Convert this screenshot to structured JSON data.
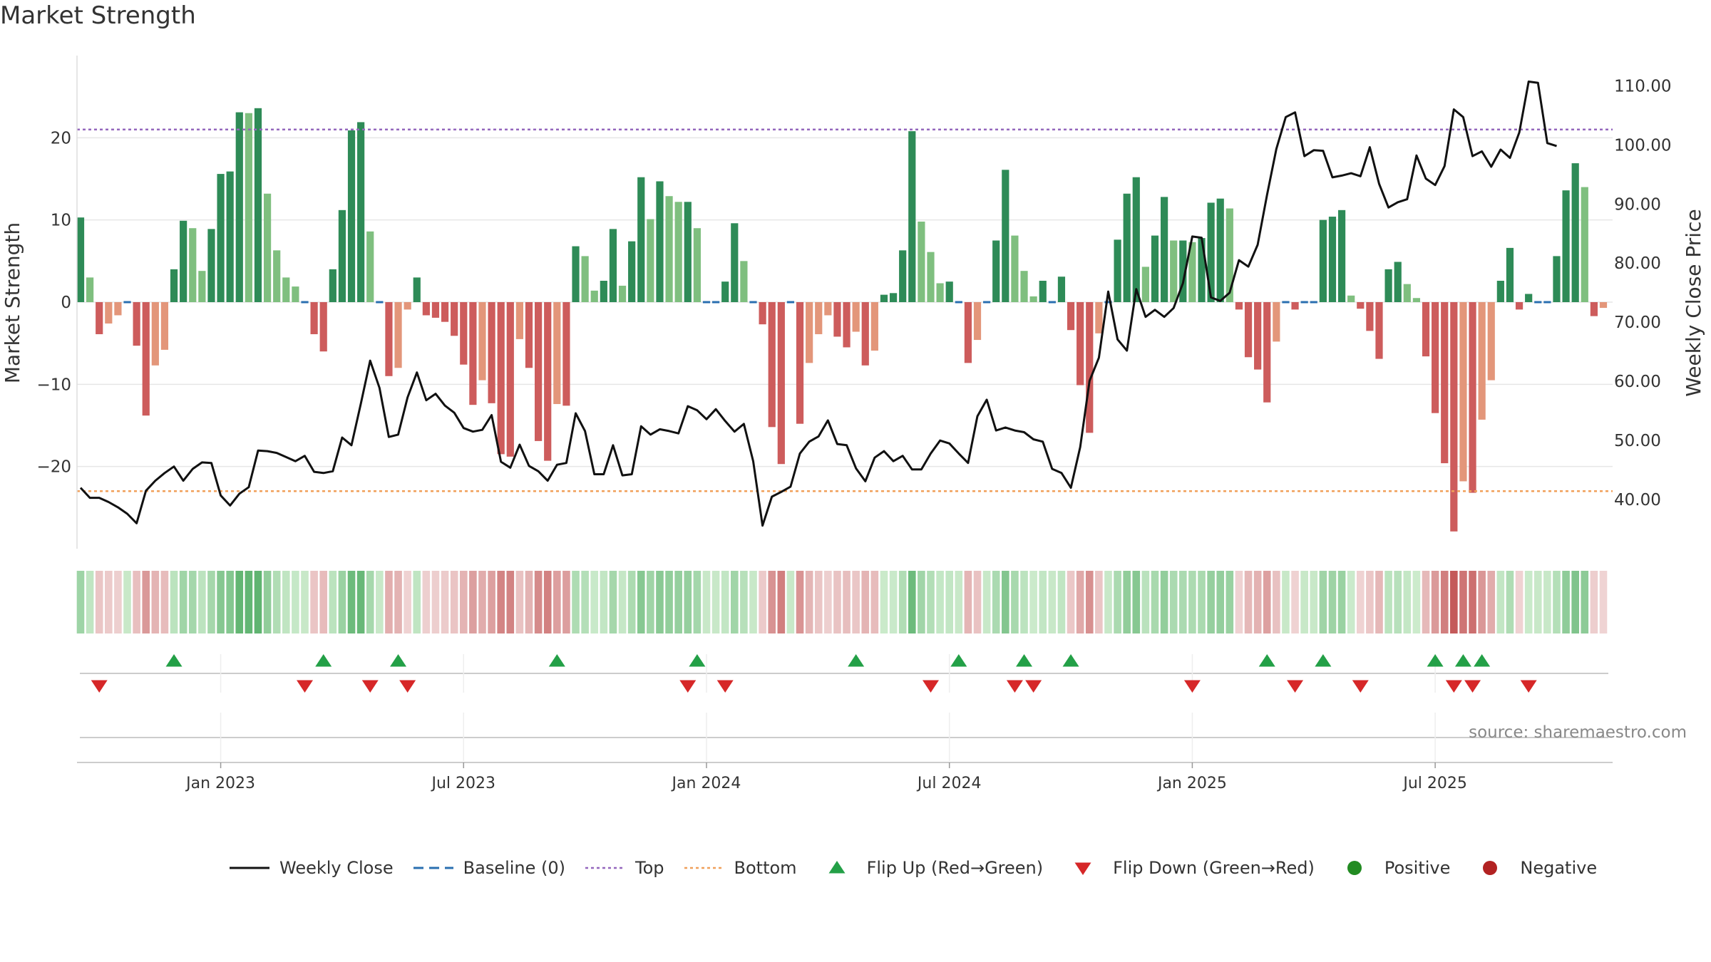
{
  "chart_data": {
    "type": "bar+line",
    "title": "Market Strength",
    "ylabel_left": "Market Strength",
    "ylabel_right": "Weekly Close Price",
    "left_axis": {
      "min": -30,
      "max": 30,
      "ticks": [
        20,
        10,
        0,
        -10,
        -20
      ],
      "tick_labels": [
        "20",
        "10",
        "0",
        "−10",
        "−20"
      ]
    },
    "right_axis": {
      "min": 31.7,
      "max": 115.1,
      "ticks": [
        110,
        100,
        90,
        80,
        70,
        60,
        50,
        40
      ],
      "tick_labels": [
        "110.00",
        "100.00",
        "90.00",
        "80.00",
        "70.00",
        "60.00",
        "50.00",
        "40.00"
      ]
    },
    "x_axis": {
      "tick_labels": [
        "Jan 2023",
        "Jul 2023",
        "Jan 2024",
        "Jul 2024",
        "Jan 2025",
        "Jul 2025"
      ],
      "tick_weeks": [
        15,
        41,
        67,
        93,
        119,
        145
      ]
    },
    "top_level": 21,
    "bottom_level": -23,
    "strength": [
      10.3,
      3,
      -3.9,
      -2.6,
      -1.6,
      0,
      -5.3,
      -13.8,
      -7.7,
      -5.8,
      4,
      9.9,
      9,
      3.8,
      8.9,
      15.6,
      15.9,
      23.1,
      23,
      23.6,
      13.2,
      6.3,
      3,
      1.9,
      0,
      -3.9,
      -6,
      4,
      11.2,
      20.9,
      21.9,
      8.6,
      0,
      -9,
      -8,
      -0.9,
      3,
      -1.6,
      -1.9,
      -2.4,
      -4.1,
      -7.6,
      -12.5,
      -9.5,
      -12.3,
      -18.5,
      -18.8,
      -4.5,
      -8,
      -16.9,
      -19.3,
      -12.4,
      -12.6,
      6.8,
      5.6,
      1.4,
      2.6,
      8.9,
      2,
      7.4,
      15.2,
      10.1,
      14.7,
      12.9,
      12.2,
      12.2,
      9,
      0,
      0,
      2.5,
      9.6,
      5,
      0,
      -2.7,
      -15.2,
      -19.7,
      0,
      -14.8,
      -7.4,
      -3.9,
      -1.6,
      -4.2,
      -5.5,
      -3.6,
      -7.7,
      -5.9,
      0.9,
      1.1,
      6.3,
      20.8,
      9.8,
      6.1,
      2.3,
      2.5,
      0,
      -7.4,
      -4.6,
      0,
      7.5,
      16.1,
      8.1,
      3.8,
      0.7,
      2.6,
      0,
      3.1,
      -3.4,
      -10.1,
      -15.9,
      -3.8,
      0,
      7.6,
      13.2,
      15.2,
      4.3,
      8.1,
      12.8,
      7.5,
      7.5,
      7.3,
      7.8,
      12.1,
      12.6,
      11.4,
      -0.9,
      -6.7,
      -8.2,
      -12.2,
      -4.8,
      0,
      -0.9,
      0,
      0,
      10,
      10.4,
      11.2,
      0.8,
      -0.8,
      -3.5,
      -6.9,
      4,
      4.9,
      2.2,
      0.5,
      -6.6,
      -13.5,
      -19.6,
      -27.9,
      -21.8,
      -23.2,
      -14.3,
      -9.5,
      2.6,
      6.6,
      -0.9,
      1,
      0,
      0,
      5.6,
      13.6,
      16.9,
      14,
      -1.7,
      -0.7
    ],
    "weekly_close": [
      42,
      40.3,
      40.3,
      39.6,
      38.7,
      37.6,
      36,
      41.5,
      43.2,
      44.5,
      45.6,
      43.2,
      45.2,
      46.3,
      46.2,
      40.7,
      39,
      41,
      42.1,
      48.3,
      48.2,
      47.9,
      47.2,
      46.5,
      47.4,
      44.7,
      44.5,
      44.8,
      50.5,
      49.2,
      56.2,
      63.5,
      58.9,
      50.6,
      51,
      57.3,
      61.5,
      56.8,
      57.9,
      55.9,
      54.7,
      52.1,
      51.5,
      51.8,
      54.3,
      46.4,
      45.4,
      49.3,
      45.7,
      44.8,
      43.2,
      45.9,
      46.2,
      54.6,
      51.6,
      44.3,
      44.3,
      49.2,
      44.1,
      44.3,
      52.4,
      51,
      51.9,
      51.6,
      51.2,
      55.8,
      55.1,
      53.6,
      55.3,
      53.3,
      51.5,
      52.8,
      46.5,
      35.6,
      40.5,
      41.3,
      42.2,
      47.8,
      49.8,
      50.7,
      53.4,
      49.4,
      49.2,
      45.3,
      43.1,
      47.1,
      48.2,
      46.5,
      47.4,
      45.1,
      45.1,
      47.8,
      50,
      49.5,
      47.8,
      46.2,
      54.1,
      56.9,
      51.7,
      52.2,
      51.7,
      51.4,
      50.2,
      49.8,
      45.2,
      44.5,
      42,
      48.9,
      60.1,
      64,
      75.2,
      67.1,
      65.2,
      75.6,
      70.9,
      72.1,
      70.9,
      72.4,
      76.6,
      84.5,
      84.3,
      74.2,
      73.6,
      75,
      80.5,
      79.4,
      83.1,
      91.5,
      99.3,
      104.7,
      105.5,
      98.1,
      99.1,
      99,
      94.5,
      94.8,
      95.2,
      94.7,
      99.6,
      93.4,
      89.4,
      90.3,
      90.8,
      98.2,
      94.3,
      93.2,
      96.4,
      106,
      104.7,
      98.1,
      98.9,
      96.3,
      99.2,
      97.8,
      102.1,
      110.7,
      110.5,
      100.3,
      99.8
    ],
    "flip_up_weeks": [
      10,
      26,
      34,
      51,
      66,
      83,
      94,
      101,
      106,
      127,
      133,
      145,
      148,
      150
    ],
    "flip_down_weeks": [
      2,
      24,
      31,
      35,
      65,
      69,
      91,
      100,
      102,
      119,
      130,
      137,
      147,
      149,
      155
    ],
    "legend": [
      {
        "label": "Weekly Close",
        "kind": "line"
      },
      {
        "label": "Baseline (0)",
        "kind": "dashed"
      },
      {
        "label": "Top",
        "kind": "dotted-purple"
      },
      {
        "label": "Bottom",
        "kind": "dotted-orange"
      },
      {
        "label": "Flip Up (Red→Green)",
        "kind": "tri-up"
      },
      {
        "label": "Flip Down (Green→Red)",
        "kind": "tri-down"
      },
      {
        "label": "Positive",
        "kind": "dot-green"
      },
      {
        "label": "Negative",
        "kind": "dot-red"
      }
    ],
    "source": "source: sharemaestro.com"
  },
  "colors": {
    "strong_green": "#2e8b57",
    "light_green": "#7fbf7f",
    "strong_red": "#cd5c5c",
    "light_red": "#e3967a",
    "line": "#111111",
    "baseline": "#2a6fb0",
    "top": "#9467bd",
    "bottom": "#f0a05a",
    "tri_up": "#23a047",
    "tri_down": "#d62728",
    "positive": "#228b22",
    "negative": "#b22222",
    "grid": "#e6e6e6",
    "axis_text": "#333333",
    "source_text": "#888888"
  }
}
